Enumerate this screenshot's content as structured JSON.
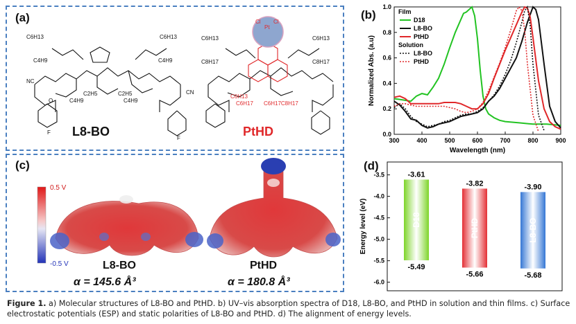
{
  "panel_a": {
    "label": "(a)",
    "molecule_1": "L8-BO",
    "molecule_2": "PtHD",
    "l8_groups": {
      "top_left": "C6H13",
      "top_right": "C6H13",
      "upper_left": "C4H9",
      "upper_right": "C4H9",
      "mid_left": "C2H5",
      "mid_right": "C2H5",
      "low_left": "C4H9",
      "low_right": "C4H9",
      "cn": "NC",
      "cn_r": "CN",
      "o": "O",
      "f": "F"
    },
    "pthd_groups": {
      "top_left": "C6H13",
      "top_right": "C6H13",
      "upper_left": "C8H17",
      "upper_right": "C8H17",
      "mid_left": "C6H13",
      "low_left": "C6H17",
      "low_right": "C6H17C8H17",
      "pt": "Pt",
      "cl1": "Cl",
      "cl2": "Cl"
    }
  },
  "panel_b": {
    "label": "(b)"
  },
  "panel_c": {
    "label": "(c)",
    "scale_max": "0.5 V",
    "scale_min": "-0.5 V",
    "left_name": "L8-BO",
    "left_alpha": "α = 145.6 Å³",
    "right_name": "PtHD",
    "right_alpha": "α = 180.8 Å³"
  },
  "panel_d": {
    "label": "(d)"
  },
  "chart_data": [
    {
      "type": "line",
      "xlabel": "Wavelength (nm)",
      "ylabel": "Normalized Abs. (a.u)",
      "xlim": [
        300,
        900
      ],
      "ylim": [
        0.0,
        1.0
      ],
      "xticks": [
        "300",
        "400",
        "500",
        "600",
        "700",
        "800",
        "900"
      ],
      "yticks": [
        "0.0",
        "0.2",
        "0.4",
        "0.6",
        "0.8",
        "1.0"
      ],
      "legend": {
        "placement": "top-left",
        "film_header": "Film",
        "solution_header": "Solution"
      },
      "series": [
        {
          "name": "D18",
          "group": "film",
          "color": "#22c322",
          "dash": false,
          "x": [
            300,
            330,
            360,
            380,
            400,
            420,
            440,
            460,
            480,
            500,
            520,
            540,
            550,
            560,
            570,
            580,
            590,
            600,
            610,
            620,
            630,
            640,
            660,
            680,
            700,
            750,
            800,
            850,
            900
          ],
          "y": [
            0.28,
            0.27,
            0.26,
            0.3,
            0.32,
            0.31,
            0.37,
            0.44,
            0.55,
            0.68,
            0.8,
            0.9,
            0.95,
            0.96,
            0.98,
            1.0,
            0.93,
            0.75,
            0.5,
            0.3,
            0.2,
            0.16,
            0.13,
            0.11,
            0.1,
            0.09,
            0.08,
            0.08,
            0.07
          ]
        },
        {
          "name": "L8-BO",
          "group": "film",
          "color": "#111111",
          "dash": false,
          "x": [
            300,
            320,
            340,
            360,
            380,
            400,
            420,
            440,
            460,
            480,
            500,
            520,
            540,
            560,
            580,
            600,
            620,
            640,
            660,
            680,
            700,
            720,
            740,
            760,
            780,
            800,
            810,
            820,
            840,
            860,
            880,
            900
          ],
          "y": [
            0.26,
            0.23,
            0.18,
            0.12,
            0.11,
            0.07,
            0.05,
            0.06,
            0.08,
            0.09,
            0.1,
            0.12,
            0.14,
            0.15,
            0.16,
            0.17,
            0.2,
            0.26,
            0.3,
            0.36,
            0.44,
            0.52,
            0.6,
            0.73,
            0.88,
            1.0,
            0.98,
            0.9,
            0.55,
            0.22,
            0.1,
            0.05
          ]
        },
        {
          "name": "PtHD",
          "group": "film",
          "color": "#e0282a",
          "dash": false,
          "x": [
            300,
            320,
            340,
            360,
            380,
            400,
            420,
            440,
            460,
            480,
            500,
            520,
            540,
            560,
            580,
            600,
            620,
            640,
            660,
            680,
            700,
            720,
            740,
            760,
            770,
            780,
            790,
            800,
            820,
            840,
            860,
            880,
            900
          ],
          "y": [
            0.29,
            0.3,
            0.28,
            0.24,
            0.24,
            0.24,
            0.24,
            0.24,
            0.24,
            0.25,
            0.25,
            0.25,
            0.24,
            0.22,
            0.2,
            0.2,
            0.24,
            0.32,
            0.44,
            0.55,
            0.66,
            0.76,
            0.86,
            0.96,
            1.0,
            0.99,
            0.92,
            0.76,
            0.42,
            0.2,
            0.1,
            0.06,
            0.04
          ]
        },
        {
          "name": "L8-BO",
          "group": "solution",
          "color": "#111111",
          "dash": true,
          "x": [
            300,
            320,
            340,
            360,
            380,
            400,
            420,
            440,
            460,
            480,
            500,
            520,
            540,
            560,
            580,
            600,
            620,
            640,
            660,
            680,
            700,
            720,
            740,
            760,
            770,
            780,
            790,
            800,
            820,
            840
          ],
          "y": [
            0.21,
            0.24,
            0.2,
            0.14,
            0.1,
            0.08,
            0.06,
            0.07,
            0.08,
            0.1,
            0.11,
            0.13,
            0.15,
            0.16,
            0.16,
            0.18,
            0.21,
            0.26,
            0.31,
            0.38,
            0.47,
            0.58,
            0.72,
            0.88,
            0.97,
            1.0,
            0.85,
            0.55,
            0.15,
            0.03
          ]
        },
        {
          "name": "PtHD",
          "group": "solution",
          "color": "#e0282a",
          "dash": true,
          "x": [
            300,
            320,
            340,
            360,
            380,
            400,
            420,
            440,
            460,
            480,
            500,
            520,
            540,
            560,
            580,
            600,
            620,
            640,
            660,
            680,
            700,
            720,
            740,
            750,
            760,
            770,
            780,
            800,
            820
          ],
          "y": [
            0.22,
            0.24,
            0.24,
            0.23,
            0.22,
            0.22,
            0.22,
            0.22,
            0.22,
            0.22,
            0.21,
            0.2,
            0.18,
            0.17,
            0.18,
            0.2,
            0.25,
            0.34,
            0.45,
            0.56,
            0.68,
            0.82,
            0.97,
            1.0,
            0.97,
            0.82,
            0.55,
            0.15,
            0.02
          ]
        }
      ]
    },
    {
      "type": "bar",
      "ylabel": "Energy level (eV)",
      "ylim": [
        -6.2,
        -3.2
      ],
      "yticks": [
        "-3.5",
        "-4.0",
        "-4.5",
        "-5.0",
        "-5.5",
        "-6.0"
      ],
      "categories": [
        "D18",
        "PtHD",
        "L8-BO"
      ],
      "lumo": [
        -3.61,
        -3.82,
        -3.9
      ],
      "homo": [
        -5.49,
        -5.66,
        -5.68
      ],
      "lumo_labels": [
        "-3.61",
        "-3.82",
        "-3.90"
      ],
      "homo_labels": [
        "-5.49",
        "-5.66",
        "-5.68"
      ],
      "colors": [
        "#77d21e",
        "#e2242a",
        "#2a6fd2"
      ]
    }
  ],
  "caption": {
    "lead": "Figure 1.",
    "text": " a) Molecular structures of L8-BO and PtHD. b) UV–vis absorption spectra of D18, L8-BO, and PtHD in solution and thin films. c) Surface electrostatic potentials (ESP) and static polarities of L8-BO and PtHD. d) The alignment of energy levels."
  }
}
